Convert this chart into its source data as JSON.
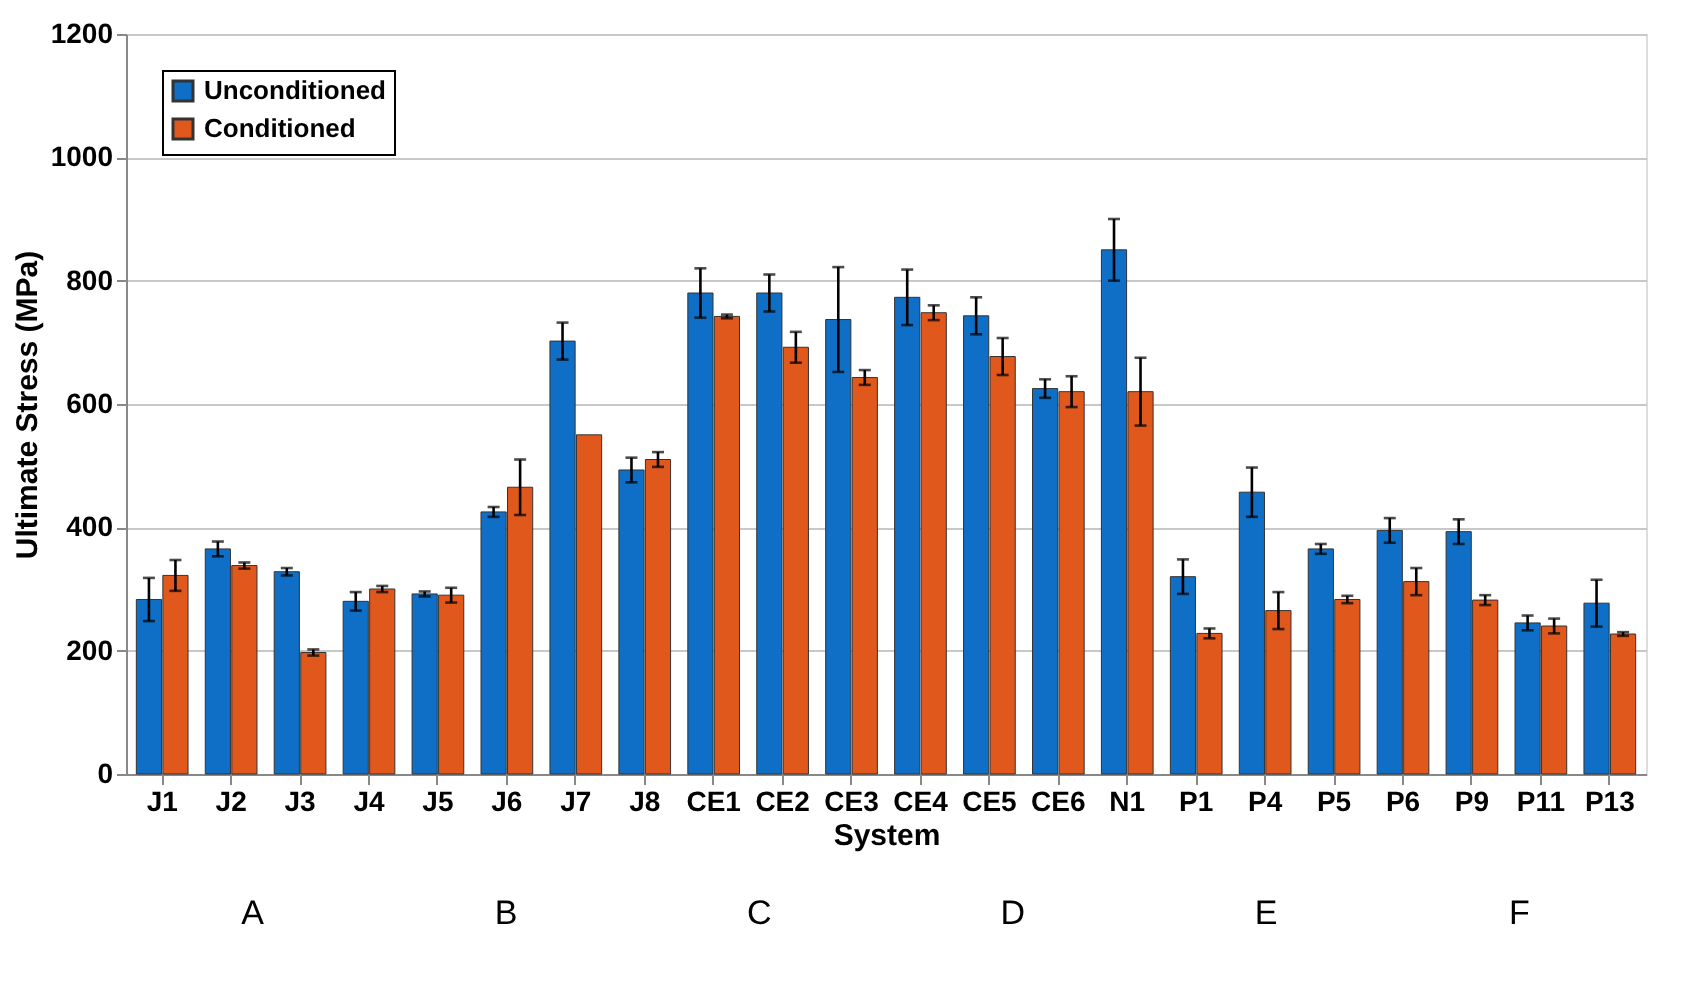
{
  "chart_data": {
    "type": "bar",
    "xlabel": "System",
    "ylabel": "Ultimate Stress (MPa)",
    "categories": [
      "J1",
      "J2",
      "J3",
      "J4",
      "J5",
      "J6",
      "J7",
      "J8",
      "CE1",
      "CE2",
      "CE3",
      "CE4",
      "CE5",
      "CE6",
      "N1",
      "P1",
      "P4",
      "P5",
      "P6",
      "P9",
      "P11",
      "P13"
    ],
    "series": [
      {
        "name": "Unconditioned",
        "color": "#0f6fc6",
        "values": [
          283,
          365,
          328,
          280,
          292,
          425,
          702,
          493,
          780,
          780,
          737,
          773,
          743,
          625,
          850,
          320,
          457,
          365,
          395,
          393,
          245,
          277
        ],
        "errors": [
          35,
          12,
          6,
          15,
          4,
          8,
          30,
          20,
          40,
          30,
          85,
          45,
          30,
          15,
          50,
          28,
          40,
          8,
          20,
          20,
          12,
          38
        ]
      },
      {
        "name": "Conditioned",
        "color": "#e0581c",
        "values": [
          322,
          338,
          197,
          300,
          290,
          465,
          550,
          510,
          742,
          692,
          643,
          748,
          677,
          620,
          620,
          228,
          265,
          283,
          312,
          282,
          240,
          227
        ],
        "errors": [
          25,
          5,
          5,
          5,
          12,
          45,
          null,
          12,
          3,
          25,
          12,
          12,
          30,
          25,
          55,
          8,
          30,
          6,
          22,
          8,
          12,
          3
        ]
      }
    ],
    "ylim": [
      0,
      1200
    ],
    "yticks": [
      0,
      200,
      400,
      600,
      800,
      1000,
      1200
    ],
    "grid": "y",
    "legend": "top left",
    "annotations": [
      "A",
      "B",
      "C",
      "D",
      "E",
      "F"
    ]
  }
}
